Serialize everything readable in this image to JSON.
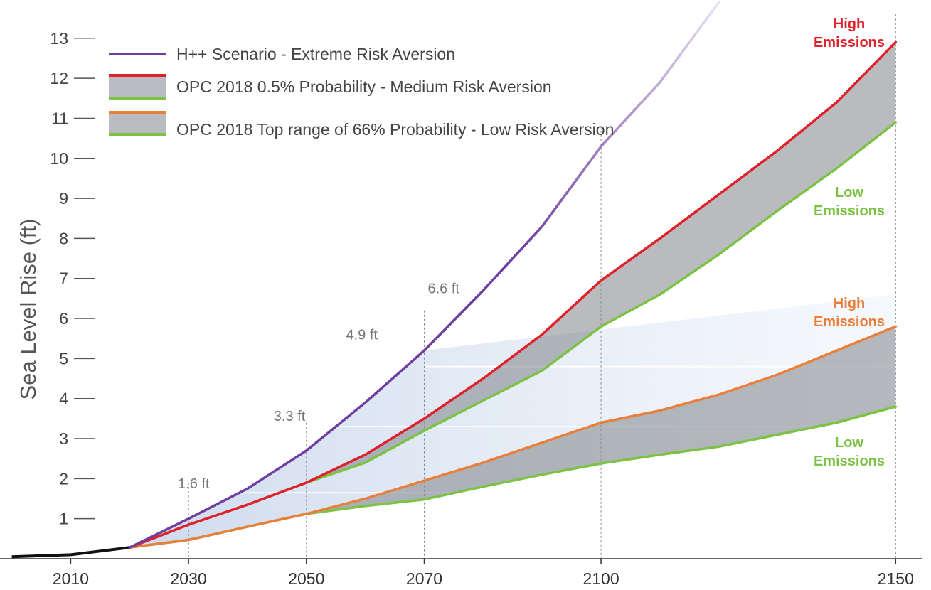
{
  "chart_data": {
    "type": "line",
    "ylabel": "Sea Level Rise (ft)",
    "xlim": [
      1998,
      2156
    ],
    "ylim": [
      0,
      13.6
    ],
    "x_ticks": [
      "2010",
      "2030",
      "2050",
      "2070",
      "2100",
      "2150"
    ],
    "x_tick_values": [
      2010,
      2030,
      2050,
      2070,
      2100,
      2150
    ],
    "y_ticks": [
      "1",
      "2",
      "3",
      "4",
      "5",
      "6",
      "7",
      "8",
      "9",
      "10",
      "11",
      "12",
      "13"
    ],
    "y_tick_values": [
      1,
      2,
      3,
      4,
      5,
      6,
      7,
      8,
      9,
      10,
      11,
      12,
      13
    ],
    "historical": {
      "color": "#111111",
      "x": [
        2000,
        2010,
        2020
      ],
      "y": [
        0.05,
        0.1,
        0.28
      ]
    },
    "series": [
      {
        "key": "hpp",
        "name": "H++ Scenario - Extreme Risk Aversion",
        "color": "#6f3fa0",
        "x": [
          2020,
          2030,
          2040,
          2050,
          2060,
          2070,
          2080,
          2090,
          2100,
          2110,
          2120
        ],
        "y": [
          0.28,
          1.0,
          1.75,
          2.7,
          3.9,
          5.2,
          6.7,
          8.3,
          10.3,
          11.9,
          13.9
        ]
      },
      {
        "key": "med_high",
        "name": "OPC 2018 0.5% Probability - Medium Risk Aversion",
        "color": "#e0202a",
        "x": [
          2020,
          2030,
          2040,
          2050,
          2060,
          2070,
          2080,
          2090,
          2100,
          2110,
          2120,
          2130,
          2140,
          2150
        ],
        "y": [
          0.28,
          0.85,
          1.35,
          1.9,
          2.6,
          3.5,
          4.5,
          5.6,
          6.95,
          8.0,
          9.1,
          10.2,
          11.4,
          12.9
        ]
      },
      {
        "key": "med_low",
        "color": "#7cc244",
        "x": [
          2020,
          2030,
          2040,
          2050,
          2060,
          2070,
          2080,
          2090,
          2100,
          2110,
          2120,
          2130,
          2140,
          2150
        ],
        "y": [
          0.28,
          0.85,
          1.35,
          1.9,
          2.4,
          3.2,
          3.95,
          4.7,
          5.8,
          6.6,
          7.6,
          8.7,
          9.75,
          10.9
        ]
      },
      {
        "key": "low_high",
        "name": "OPC 2018 Top range of 66% Probability - Low Risk Aversion",
        "color": "#ea7f3c",
        "x": [
          2020,
          2030,
          2040,
          2050,
          2060,
          2070,
          2080,
          2090,
          2100,
          2110,
          2120,
          2130,
          2140,
          2150
        ],
        "y": [
          0.28,
          0.47,
          0.8,
          1.12,
          1.5,
          1.95,
          2.4,
          2.9,
          3.4,
          3.7,
          4.1,
          4.6,
          5.2,
          5.8
        ]
      },
      {
        "key": "low_low",
        "color": "#7cc244",
        "x": [
          2020,
          2030,
          2040,
          2050,
          2060,
          2070,
          2080,
          2090,
          2100,
          2110,
          2120,
          2130,
          2140,
          2150
        ],
        "y": [
          0.28,
          0.47,
          0.8,
          1.12,
          1.32,
          1.48,
          1.8,
          2.1,
          2.38,
          2.6,
          2.8,
          3.1,
          3.4,
          3.8
        ]
      }
    ],
    "threshold_labels": [
      {
        "text": "1.6 ft",
        "x": 2030,
        "y": 1.65
      },
      {
        "text": "3.3 ft",
        "x": 2050,
        "y": 3.3
      },
      {
        "text": "4.9 ft",
        "x": 2070,
        "y": 4.8
      },
      {
        "text": "6.6 ft",
        "x": 2070,
        "y": 6.6
      }
    ],
    "annotations": [
      {
        "lines": [
          "High",
          "Emissions"
        ],
        "color": "#e0202a",
        "x": 2150,
        "y": 12.85
      },
      {
        "lines": [
          "Low",
          "Emissions"
        ],
        "color": "#7cc244",
        "x": 2150,
        "y": 10.9
      },
      {
        "lines": [
          "High",
          "Emissions"
        ],
        "color": "#ea7f3c",
        "x": 2150,
        "y": 5.8
      },
      {
        "lines": [
          "Low",
          "Emissions"
        ],
        "color": "#7cc244",
        "x": 2150,
        "y": 3.8
      }
    ],
    "reference_lines_x": [
      2030,
      2050,
      2070,
      2100,
      2150
    ],
    "legend_placement": "top-left",
    "grid": false
  }
}
